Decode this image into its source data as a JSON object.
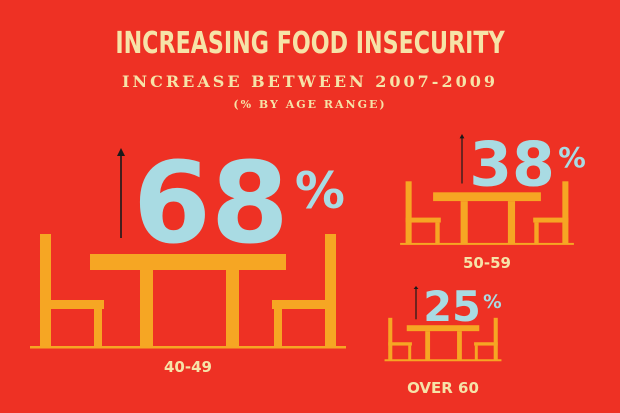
{
  "title": "INCREASING FOOD INSECURITY",
  "subtitle": "INCREASE BETWEEN 2007-2009",
  "unit_note": "(% BY AGE RANGE)",
  "colors": {
    "background": "#ee3124",
    "furniture": "#f6a623",
    "value": "#a9dbe3",
    "text": "#f6e3a8",
    "arrow": "#1a1a1a"
  },
  "chart_data": {
    "type": "bar",
    "title": "INCREASING FOOD INSECURITY",
    "subtitle": "INCREASE BETWEEN 2007-2009",
    "unit": "%",
    "categories": [
      "40-49",
      "50-59",
      "OVER 60"
    ],
    "values": [
      68,
      38,
      25
    ],
    "value_labels": [
      "68",
      "38",
      "25"
    ],
    "grid": false,
    "legend": "none",
    "icon": "table-and-chairs-icon"
  }
}
